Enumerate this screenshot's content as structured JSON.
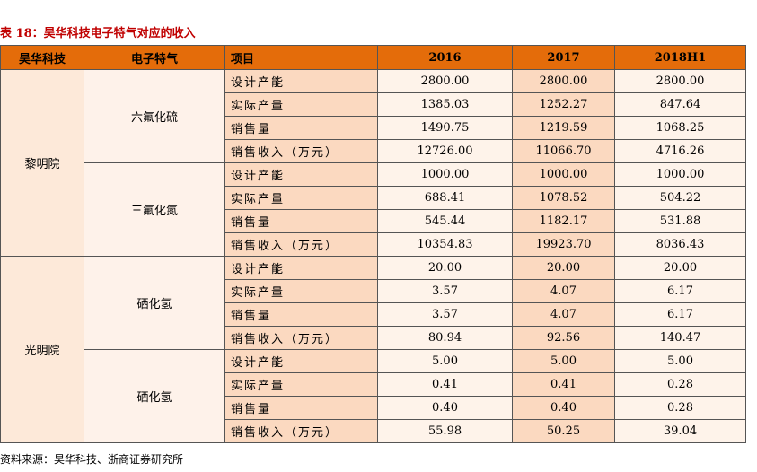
{
  "title": "表 18：昊华科技电子特气对应的收入",
  "table": {
    "header": [
      "昊华科技",
      "电子特气",
      "项目",
      "2016",
      "2017",
      "2018H1"
    ],
    "companies": [
      {
        "name": "黎明院",
        "products": [
          {
            "name": "六氟化硫",
            "rows": [
              {
                "item": "设计产能",
                "values": [
                  "2800.00",
                  "2800.00",
                  "2800.00"
                ]
              },
              {
                "item": "实际产量",
                "values": [
                  "1385.03",
                  "1252.27",
                  "847.64"
                ]
              },
              {
                "item": "销售量",
                "values": [
                  "1490.75",
                  "1219.59",
                  "1068.25"
                ]
              },
              {
                "item": "销售收入（万元）",
                "values": [
                  "12726.00",
                  "11066.70",
                  "4716.26"
                ]
              }
            ]
          },
          {
            "name": "三氟化氮",
            "rows": [
              {
                "item": "设计产能",
                "values": [
                  "1000.00",
                  "1000.00",
                  "1000.00"
                ]
              },
              {
                "item": "实际产量",
                "values": [
                  "688.41",
                  "1078.52",
                  "504.22"
                ]
              },
              {
                "item": "销售量",
                "values": [
                  "545.44",
                  "1182.17",
                  "531.88"
                ]
              },
              {
                "item": "销售收入（万元）",
                "values": [
                  "10354.83",
                  "19923.70",
                  "8036.43"
                ]
              }
            ]
          }
        ]
      },
      {
        "name": "光明院",
        "products": [
          {
            "name": "硒化氢",
            "rows": [
              {
                "item": "设计产能",
                "values": [
                  "20.00",
                  "20.00",
                  "20.00"
                ]
              },
              {
                "item": "实际产量",
                "values": [
                  "3.57",
                  "4.07",
                  "6.17"
                ]
              },
              {
                "item": "销售量",
                "values": [
                  "3.57",
                  "4.07",
                  "6.17"
                ]
              },
              {
                "item": "销售收入（万元）",
                "values": [
                  "80.94",
                  "92.56",
                  "140.47"
                ]
              }
            ]
          },
          {
            "name": "硒化氢",
            "rows": [
              {
                "item": "设计产能",
                "values": [
                  "5.00",
                  "5.00",
                  "5.00"
                ]
              },
              {
                "item": "实际产量",
                "values": [
                  "0.41",
                  "0.41",
                  "0.28"
                ]
              },
              {
                "item": "销售量",
                "values": [
                  "0.40",
                  "0.40",
                  "0.28"
                ]
              },
              {
                "item": "销售收入（万元）",
                "values": [
                  "55.98",
                  "50.25",
                  "39.04"
                ]
              }
            ]
          }
        ]
      }
    ]
  },
  "source": "资料来源：昊华科技、浙商证券研究所"
}
